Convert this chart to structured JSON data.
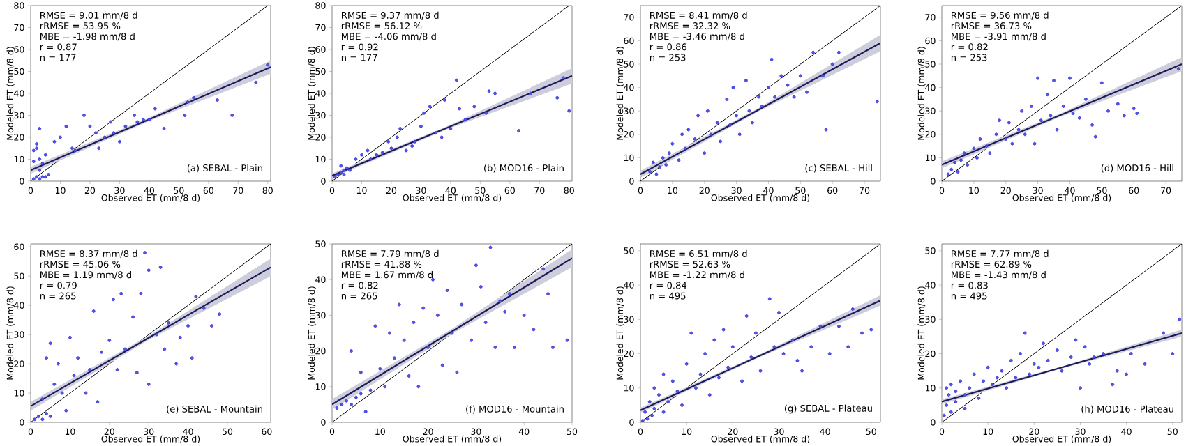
{
  "chart_data": [
    {
      "type": "scatter",
      "xlabel": "Observed ET (mm/8 d)",
      "ylabel": "Modeled ET (mm/8 d)",
      "xlim": [
        0,
        81
      ],
      "ylim": [
        0,
        80
      ],
      "xticks": [
        0,
        10,
        20,
        30,
        40,
        50,
        60,
        70,
        80
      ],
      "yticks": [
        0,
        10,
        20,
        30,
        40,
        50,
        60,
        70,
        80
      ],
      "marker": "circle",
      "annotations": [
        "RMSE = 9.01 mm/8 d",
        "rRMSE = 53.95 %",
        "MBE = -1.98 mm/8 d",
        "r = 0.87",
        "n = 177",
        "(a) SEBAL - Plain"
      ],
      "series": [
        {
          "color": "#2a2ae0",
          "x": [
            1,
            2,
            3,
            4,
            5,
            6,
            2,
            3,
            1,
            2,
            3,
            4,
            5,
            8,
            10,
            12,
            14,
            15,
            18,
            20,
            22,
            23,
            25,
            27,
            28,
            30,
            32,
            35,
            36,
            38,
            40,
            42,
            45,
            52,
            53,
            55,
            63,
            68,
            76,
            80,
            3,
            1
          ],
          "values": [
            1,
            2,
            1,
            2,
            2,
            3,
            15,
            24,
            14,
            17,
            10,
            8,
            12,
            18,
            20,
            25,
            15,
            14,
            30,
            25,
            22,
            15,
            20,
            27,
            22,
            18,
            25,
            30,
            27,
            28,
            28,
            33,
            24,
            30,
            36,
            38,
            37,
            30,
            45,
            53,
            5,
            9
          ]
        },
        {
          "type": "line",
          "color": "#000000",
          "marker": "none",
          "x": [
            0,
            80
          ],
          "values": [
            0,
            80
          ]
        },
        {
          "type": "line",
          "color": "#1b1b5a",
          "marker": "none",
          "x": [
            0,
            40,
            81
          ],
          "values": [
            5,
            28.2,
            52
          ],
          "lower": [
            3.5,
            27.4,
            49
          ],
          "upper": [
            6.5,
            29,
            55
          ]
        }
      ]
    },
    {
      "type": "scatter",
      "xlabel": "Observed ET (mm/8 d)",
      "ylabel": "Modeled ET (mm/8 d)",
      "xlim": [
        0,
        81
      ],
      "ylim": [
        0,
        80
      ],
      "xticks": [
        0,
        10,
        20,
        30,
        40,
        50,
        60,
        70,
        80
      ],
      "yticks": [
        0,
        10,
        20,
        30,
        40,
        50,
        60,
        70,
        80
      ],
      "marker": "circle",
      "annotations": [
        "RMSE = 9.37 mm/8 d",
        "rRMSE = 56.12 %",
        "MBE = -4.06 mm/8 d",
        "r = 0.92",
        "n = 177",
        "(b) MOD16 - Plain"
      ],
      "series": [
        {
          "color": "#2a2ae0",
          "x": [
            1,
            2,
            3,
            4,
            5,
            3,
            4,
            6,
            8,
            10,
            12,
            13,
            15,
            17,
            19,
            20,
            22,
            23,
            25,
            27,
            28,
            30,
            31,
            33,
            35,
            37,
            38,
            40,
            42,
            43,
            45,
            48,
            52,
            53,
            55,
            63,
            67,
            76,
            78,
            80
          ],
          "values": [
            2,
            3,
            4,
            5,
            6,
            7,
            3,
            5,
            10,
            12,
            14,
            10,
            12,
            13,
            18,
            15,
            20,
            24,
            14,
            16,
            18,
            25,
            31,
            34,
            22,
            20,
            37,
            24,
            46,
            33,
            28,
            34,
            31,
            41,
            40,
            23,
            40,
            38,
            47,
            32
          ]
        },
        {
          "type": "line",
          "color": "#000000",
          "marker": "none",
          "x": [
            0,
            80
          ],
          "values": [
            0,
            80
          ]
        },
        {
          "type": "line",
          "color": "#1b1b5a",
          "marker": "none",
          "x": [
            0,
            40,
            81
          ],
          "values": [
            2.5,
            25,
            48
          ],
          "lower": [
            1.5,
            24.3,
            44.5
          ],
          "upper": [
            3.5,
            25.7,
            51.5
          ]
        }
      ]
    },
    {
      "type": "scatter",
      "xlabel": "Observed ET (mm/8 d)",
      "ylabel": "Modeled ET (mm/8 d)",
      "xlim": [
        0,
        75
      ],
      "ylim": [
        0,
        75
      ],
      "xticks": [
        0,
        10,
        20,
        30,
        40,
        50,
        60,
        70
      ],
      "yticks": [
        0,
        10,
        20,
        30,
        40,
        50,
        60,
        70
      ],
      "marker": "circle",
      "annotations": [
        "RMSE = 8.41 mm/8 d",
        "rRMSE = 32.32 %",
        "MBE = -3.46 mm/8 d",
        "r = 0.86",
        "n = 253",
        "(c) SEBAL - Hill"
      ],
      "series": [
        {
          "color": "#2a2ae0",
          "x": [
            3,
            4,
            5,
            6,
            7,
            8,
            9,
            10,
            12,
            13,
            14,
            15,
            17,
            18,
            20,
            21,
            22,
            24,
            25,
            27,
            28,
            29,
            30,
            31,
            33,
            34,
            35,
            37,
            38,
            40,
            41,
            42,
            44,
            46,
            48,
            50,
            52,
            54,
            57,
            58,
            60,
            62,
            74
          ],
          "values": [
            4,
            8,
            3,
            6,
            10,
            7,
            12,
            16,
            9,
            20,
            14,
            22,
            18,
            28,
            12,
            30,
            20,
            25,
            17,
            35,
            24,
            40,
            28,
            20,
            43,
            30,
            25,
            36,
            32,
            40,
            52,
            36,
            45,
            41,
            36,
            45,
            38,
            55,
            45,
            22,
            50,
            55,
            34
          ]
        },
        {
          "type": "line",
          "color": "#000000",
          "marker": "none",
          "x": [
            0,
            75
          ],
          "values": [
            0,
            75
          ]
        },
        {
          "type": "line",
          "color": "#1b1b5a",
          "marker": "none",
          "x": [
            0,
            37,
            75
          ],
          "values": [
            3,
            30.6,
            59
          ],
          "lower": [
            1.5,
            29.9,
            55.5
          ],
          "upper": [
            4.5,
            31.3,
            62.5
          ]
        }
      ]
    },
    {
      "type": "scatter",
      "xlabel": "Observed ET (mm/8 d)",
      "ylabel": "Modeled ET (mm/8 d)",
      "xlim": [
        0,
        75
      ],
      "ylim": [
        0,
        75
      ],
      "xticks": [
        0,
        10,
        20,
        30,
        40,
        50,
        60,
        70
      ],
      "yticks": [
        0,
        10,
        20,
        30,
        40,
        50,
        60,
        70
      ],
      "marker": "circle",
      "annotations": [
        "RMSE = 9.56 mm/8 d",
        "rRMSE = 36.73 %",
        "MBE = -3.91 mm/8 d",
        "r = 0.82",
        "n = 253",
        "(d) MOD16 - Hill"
      ],
      "series": [
        {
          "color": "#2a2ae0",
          "x": [
            2,
            3,
            4,
            5,
            6,
            7,
            8,
            10,
            11,
            12,
            14,
            15,
            17,
            18,
            20,
            21,
            22,
            24,
            25,
            26,
            28,
            29,
            30,
            31,
            33,
            34,
            35,
            36,
            38,
            40,
            41,
            43,
            45,
            47,
            48,
            50,
            52,
            55,
            57,
            60,
            61,
            74
          ],
          "values": [
            3,
            5,
            8,
            4,
            9,
            12,
            7,
            14,
            10,
            18,
            15,
            12,
            20,
            26,
            18,
            25,
            16,
            22,
            30,
            20,
            32,
            16,
            44,
            26,
            37,
            28,
            43,
            22,
            32,
            44,
            29,
            27,
            35,
            24,
            19,
            42,
            30,
            33,
            28,
            31,
            29,
            48
          ]
        },
        {
          "type": "line",
          "color": "#000000",
          "marker": "none",
          "x": [
            0,
            75
          ],
          "values": [
            0,
            75
          ]
        },
        {
          "type": "line",
          "color": "#1b1b5a",
          "marker": "none",
          "x": [
            0,
            37,
            75
          ],
          "values": [
            7,
            28.2,
            50
          ],
          "lower": [
            5.5,
            27.5,
            47
          ],
          "upper": [
            8.5,
            28.9,
            53
          ]
        }
      ]
    },
    {
      "type": "scatter",
      "xlabel": "Observed ET (mm/8 d)",
      "ylabel": "Modeled ET (mm/8 d)",
      "xlim": [
        0,
        61
      ],
      "ylim": [
        0,
        61
      ],
      "xticks": [
        0,
        10,
        20,
        30,
        40,
        50,
        60
      ],
      "yticks": [
        0,
        10,
        20,
        30,
        40,
        50,
        60
      ],
      "marker": "circle",
      "annotations": [
        "RMSE = 8.37 mm/8 d",
        "rRMSE = 45.06 %",
        "MBE = 1.19 mm/8 d",
        "r = 0.79",
        "n = 265",
        "(e) SEBAL - Mountain"
      ],
      "series": [
        {
          "color": "#2a2ae0",
          "x": [
            1,
            2,
            3,
            4,
            5,
            3,
            4,
            5,
            6,
            7,
            8,
            9,
            10,
            11,
            12,
            14,
            15,
            16,
            17,
            18,
            20,
            21,
            22,
            23,
            24,
            26,
            27,
            28,
            29,
            30,
            30,
            32,
            33,
            34,
            35,
            37,
            38,
            40,
            41,
            42,
            44,
            46,
            48
          ],
          "values": [
            1,
            2,
            1,
            3,
            2,
            8,
            22,
            27,
            13,
            20,
            10,
            4,
            29,
            16,
            22,
            10,
            18,
            38,
            7,
            24,
            28,
            42,
            18,
            44,
            25,
            36,
            17,
            44,
            58,
            13,
            52,
            30,
            53,
            25,
            34,
            20,
            29,
            33,
            22,
            43,
            39,
            33,
            37
          ]
        },
        {
          "type": "line",
          "color": "#000000",
          "marker": "none",
          "x": [
            0,
            61
          ],
          "values": [
            0,
            61
          ]
        },
        {
          "type": "line",
          "color": "#1b1b5a",
          "marker": "none",
          "x": [
            0,
            30,
            61
          ],
          "values": [
            5.5,
            28.9,
            53
          ],
          "lower": [
            4,
            28.2,
            50
          ],
          "upper": [
            7,
            29.6,
            56
          ]
        }
      ]
    },
    {
      "type": "scatter",
      "xlabel": "Observed ET (mm/8 d)",
      "ylabel": "Modeled ET (mm/8 d)",
      "xlim": [
        0,
        50
      ],
      "ylim": [
        0,
        50
      ],
      "xticks": [
        0,
        10,
        20,
        30,
        40,
        50
      ],
      "yticks": [
        0,
        10,
        20,
        30,
        40,
        50
      ],
      "marker": "circle",
      "annotations": [
        "RMSE = 7.79 mm/8 d",
        "rRMSE = 41.88 %",
        "MBE = 1.67 mm/8 d",
        "r = 0.82",
        "n = 265",
        "(f) MOD16 - Mountain"
      ],
      "series": [
        {
          "color": "#2a2ae0",
          "x": [
            1,
            2,
            3,
            4,
            5,
            6,
            4,
            6,
            7,
            8,
            9,
            10,
            11,
            12,
            13,
            14,
            15,
            16,
            17,
            18,
            19,
            20,
            21,
            22,
            23,
            24,
            25,
            26,
            27,
            29,
            30,
            31,
            32,
            33,
            34,
            35,
            36,
            37,
            38,
            40,
            42,
            44,
            45,
            46,
            49
          ],
          "values": [
            4,
            5,
            6,
            5,
            7,
            8,
            20,
            14,
            3,
            9,
            27,
            15,
            10,
            25,
            18,
            33,
            23,
            13,
            28,
            10,
            32,
            21,
            40,
            30,
            16,
            37,
            25,
            14,
            33,
            23,
            44,
            38,
            28,
            49,
            21,
            34,
            31,
            36,
            21,
            30,
            26,
            43,
            36,
            21,
            23
          ]
        },
        {
          "type": "line",
          "color": "#000000",
          "marker": "none",
          "x": [
            0,
            50
          ],
          "values": [
            0,
            50
          ]
        },
        {
          "type": "line",
          "color": "#1b1b5a",
          "marker": "none",
          "x": [
            0,
            25,
            50
          ],
          "values": [
            5,
            25.5,
            46
          ],
          "lower": [
            3.5,
            24.8,
            43.5
          ],
          "upper": [
            6.5,
            26.2,
            48.5
          ]
        }
      ]
    },
    {
      "type": "scatter",
      "xlabel": "Observed ET (mm/8 d)",
      "ylabel": "Modeled ET (mm/8 d)",
      "xlim": [
        0,
        52
      ],
      "ylim": [
        0,
        52
      ],
      "xticks": [
        0,
        10,
        20,
        30,
        40,
        50
      ],
      "yticks": [
        0,
        10,
        20,
        30,
        40,
        50
      ],
      "marker": "circle",
      "annotations": [
        "RMSE = 6.51 mm/8 d",
        "rRMSE = 52.63 %",
        "MBE = -1.22 mm/8 d",
        "r = 0.84",
        "n = 495",
        "(g) SEBAL - Plateau"
      ],
      "series": [
        {
          "color": "#2a2ae0",
          "x": [
            0.5,
            1,
            1.5,
            2,
            2.5,
            3,
            3,
            4,
            5,
            5,
            6,
            7,
            8,
            9,
            10,
            11,
            12,
            13,
            14,
            15,
            16,
            17,
            18,
            19,
            20,
            22,
            23,
            24,
            25,
            26,
            28,
            29,
            30,
            31,
            33,
            34,
            35,
            37,
            39,
            41,
            43,
            45,
            46,
            48,
            50
          ],
          "values": [
            0.5,
            3,
            1,
            6,
            2,
            10,
            4,
            8,
            3,
            14,
            6,
            12,
            9,
            5,
            17,
            26,
            10,
            14,
            20,
            8,
            24,
            13,
            27,
            16,
            22,
            12,
            31,
            19,
            26,
            15,
            36,
            22,
            32,
            20,
            24,
            18,
            15,
            22,
            28,
            20,
            28,
            22,
            33,
            26,
            27
          ]
        },
        {
          "type": "line",
          "color": "#000000",
          "marker": "none",
          "x": [
            0,
            52
          ],
          "values": [
            0,
            52
          ]
        },
        {
          "type": "line",
          "color": "#1b1b5a",
          "marker": "none",
          "x": [
            0,
            26,
            52
          ],
          "values": [
            3.5,
            19.5,
            35.5
          ],
          "lower": [
            2.8,
            19.1,
            34
          ],
          "upper": [
            4.2,
            19.9,
            37
          ]
        }
      ]
    },
    {
      "type": "scatter",
      "xlabel": "Observed ET (mm/8 d)",
      "ylabel": "Modeled ET (mm/8 d)",
      "xlim": [
        0,
        52
      ],
      "ylim": [
        0,
        52
      ],
      "xticks": [
        0,
        10,
        20,
        30,
        40,
        50
      ],
      "yticks": [
        0,
        10,
        20,
        30,
        40,
        50
      ],
      "marker": "circle",
      "annotations": [
        "RMSE = 7.77 mm/8 d",
        "rRMSE = 62.89 %",
        "MBE = -1.43 mm/8 d",
        "r = 0.83",
        "n = 495",
        "(h) MOD16 - Plateau"
      ],
      "series": [
        {
          "color": "#2a2ae0",
          "x": [
            0.5,
            1,
            1,
            1.5,
            2,
            2,
            3,
            3,
            4,
            5,
            5,
            6,
            7,
            8,
            9,
            10,
            11,
            12,
            13,
            14,
            15,
            16,
            17,
            18,
            19,
            20,
            21,
            22,
            23,
            25,
            26,
            28,
            29,
            30,
            31,
            32,
            33,
            35,
            37,
            38,
            40,
            41,
            44,
            48,
            50,
            51.5
          ],
          "values": [
            2,
            5,
            10,
            8,
            3,
            11,
            6,
            9,
            12,
            4,
            8,
            10,
            14,
            7,
            12,
            16,
            11,
            13,
            15,
            10,
            18,
            13,
            20,
            26,
            14,
            17,
            16,
            23,
            18,
            21,
            15,
            19,
            24,
            10,
            22,
            17,
            19,
            20,
            11,
            15,
            14,
            20,
            17,
            26,
            20,
            30
          ]
        },
        {
          "type": "line",
          "color": "#000000",
          "marker": "none",
          "x": [
            0,
            52
          ],
          "values": [
            0,
            52
          ]
        },
        {
          "type": "line",
          "color": "#1b1b5a",
          "marker": "none",
          "x": [
            0,
            26,
            52
          ],
          "values": [
            6,
            16,
            26
          ],
          "lower": [
            5.3,
            15.7,
            25
          ],
          "upper": [
            6.7,
            16.3,
            27
          ]
        }
      ]
    }
  ]
}
